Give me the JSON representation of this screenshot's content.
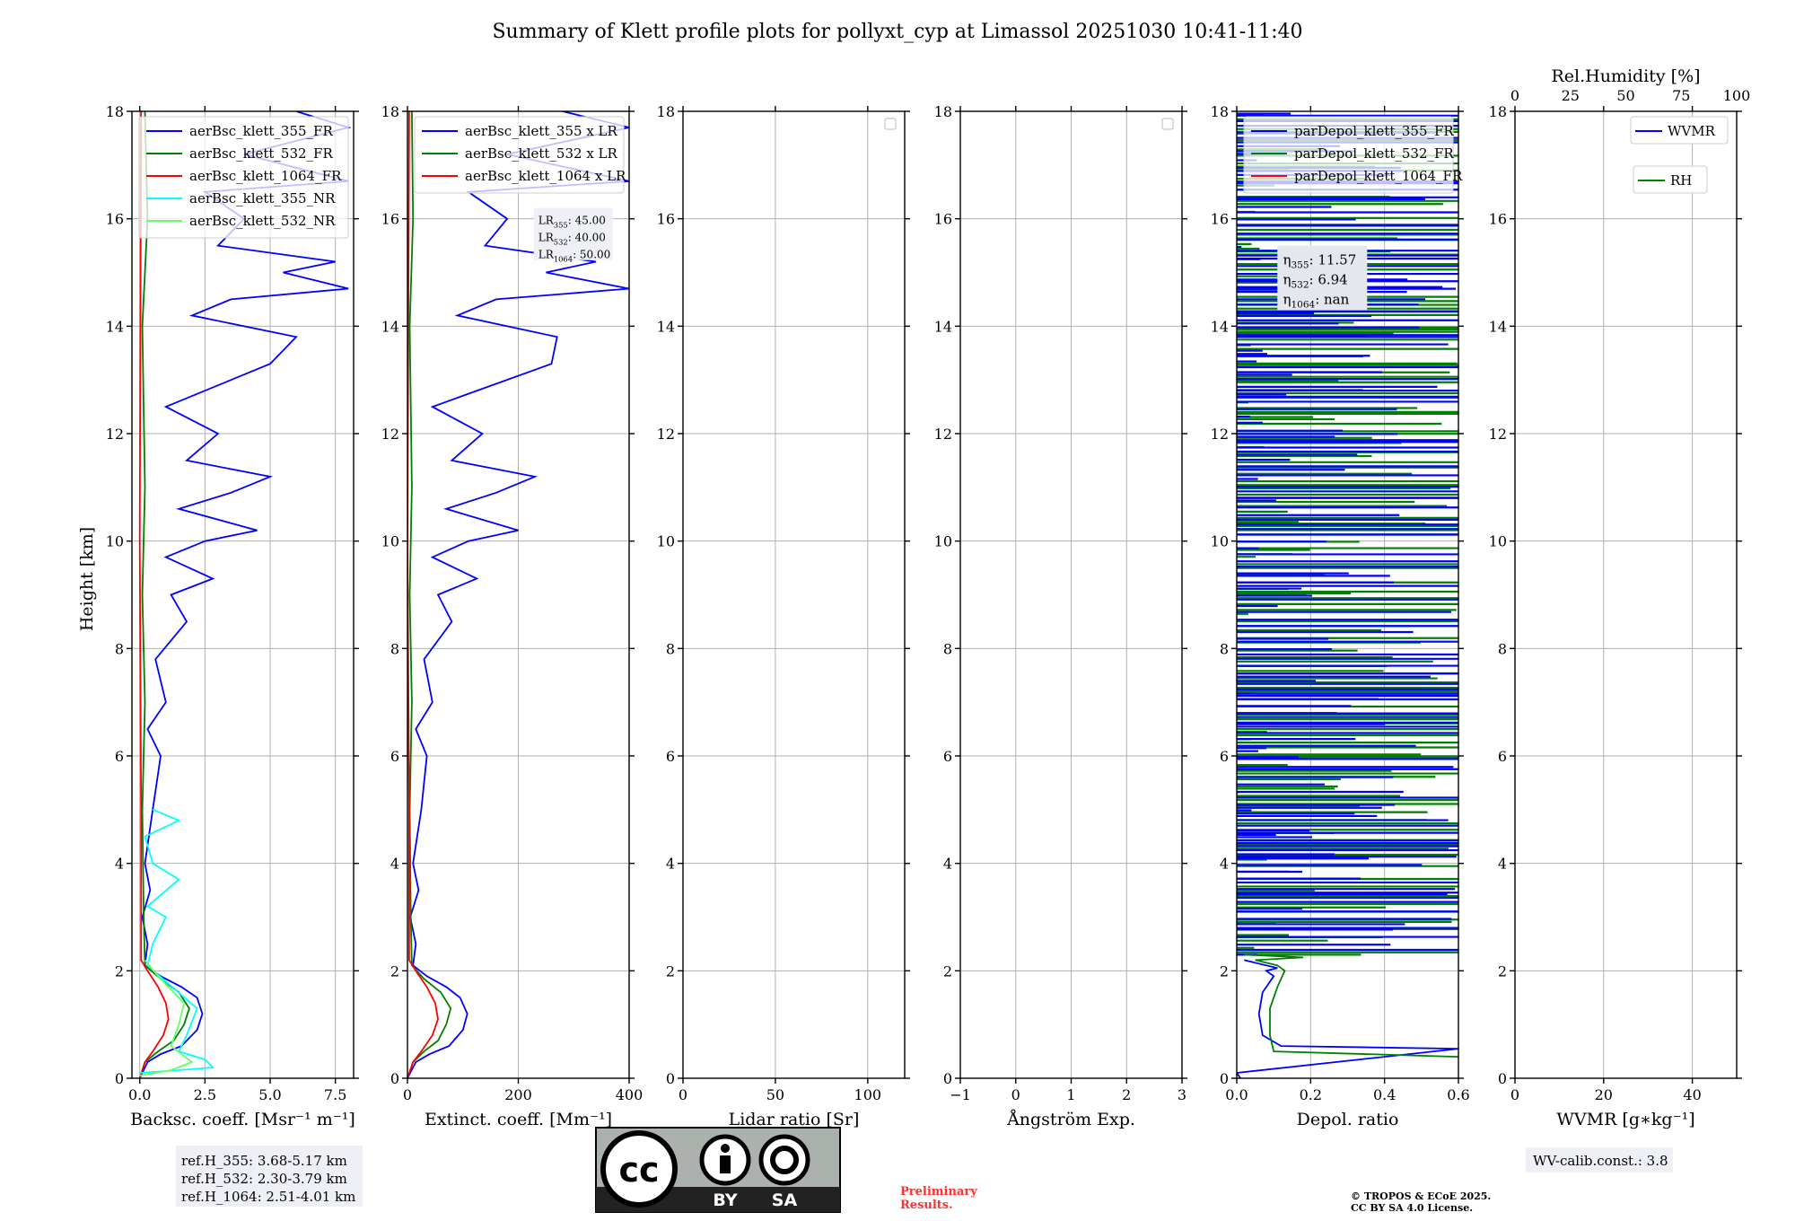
{
  "title": "Summary of Klett profile plots for pollyxt_cyp at Limassol 20251030 10:41-11:40",
  "ylabel": "Height [km]",
  "colors": {
    "c355": "#0000ff",
    "c532": "#008000",
    "c1064": "#ff0000",
    "cNR355": "#00ffff",
    "cNR532": "#66ff66",
    "grid": "#b0b0b0"
  },
  "chart_data": [
    {
      "type": "line",
      "xlabel": "Backsc. coeff. [Msr⁻¹ m⁻¹]",
      "xlim": [
        -0.3,
        8.2
      ],
      "ylim": [
        0,
        18
      ],
      "xticks": [
        0,
        2.5,
        5,
        7.5
      ],
      "xticklabels": [
        "0.0",
        "2.5",
        "5.0",
        "7.5"
      ],
      "yticks": [
        0,
        2,
        4,
        6,
        8,
        10,
        12,
        14,
        16,
        18
      ],
      "legend": [
        "aerBsc_klett_355_FR",
        "aerBsc_klett_532_FR",
        "aerBsc_klett_1064_FR",
        "aerBsc_klett_355_NR",
        "aerBsc_klett_532_NR"
      ],
      "series": [
        {
          "name": "aerBsc_klett_355_FR",
          "color": "#0000ff",
          "points": [
            [
              0,
              0
            ],
            [
              0.3,
              0.3
            ],
            [
              0.8,
              0.45
            ],
            [
              1.6,
              0.6
            ],
            [
              2.2,
              0.9
            ],
            [
              2.4,
              1.2
            ],
            [
              2.2,
              1.5
            ],
            [
              1.6,
              1.7
            ],
            [
              0.8,
              1.9
            ],
            [
              0.2,
              2.1
            ],
            [
              0.3,
              2.5
            ],
            [
              0.1,
              3.0
            ],
            [
              0.4,
              3.5
            ],
            [
              0.2,
              4.0
            ],
            [
              0.5,
              5.0
            ],
            [
              0.8,
              6.0
            ],
            [
              0.3,
              6.5
            ],
            [
              1.0,
              7.0
            ],
            [
              0.6,
              7.8
            ],
            [
              1.8,
              8.5
            ],
            [
              1.2,
              9.0
            ],
            [
              2.8,
              9.3
            ],
            [
              1.0,
              9.7
            ],
            [
              2.5,
              10.0
            ],
            [
              4.5,
              10.2
            ],
            [
              1.5,
              10.6
            ],
            [
              3.5,
              10.9
            ],
            [
              5.0,
              11.2
            ],
            [
              1.8,
              11.5
            ],
            [
              3.0,
              12.0
            ],
            [
              1.0,
              12.5
            ],
            [
              5.0,
              13.3
            ],
            [
              6.0,
              13.8
            ],
            [
              2.0,
              14.2
            ],
            [
              3.5,
              14.5
            ],
            [
              8.0,
              14.7
            ],
            [
              5.5,
              15.0
            ],
            [
              7.5,
              15.2
            ],
            [
              3.0,
              15.5
            ],
            [
              4.0,
              16.0
            ],
            [
              2.5,
              16.5
            ],
            [
              8.0,
              16.7
            ],
            [
              4.0,
              17.2
            ],
            [
              8.0,
              17.7
            ],
            [
              6.0,
              18.0
            ]
          ]
        },
        {
          "name": "aerBsc_klett_532_FR",
          "color": "#008000",
          "points": [
            [
              0,
              0
            ],
            [
              0.2,
              0.3
            ],
            [
              0.7,
              0.5
            ],
            [
              1.3,
              0.7
            ],
            [
              1.7,
              1.0
            ],
            [
              1.9,
              1.3
            ],
            [
              1.5,
              1.6
            ],
            [
              0.8,
              1.85
            ],
            [
              0.2,
              2.1
            ],
            [
              0.15,
              3.0
            ],
            [
              0.1,
              5.0
            ],
            [
              0.2,
              7.0
            ],
            [
              0.1,
              9.0
            ],
            [
              0.2,
              11.0
            ],
            [
              0.1,
              14.0
            ],
            [
              0.3,
              16.0
            ],
            [
              0.2,
              18.0
            ]
          ]
        },
        {
          "name": "aerBsc_klett_1064_FR",
          "color": "#ff0000",
          "points": [
            [
              0,
              0
            ],
            [
              0.2,
              0.3
            ],
            [
              0.5,
              0.5
            ],
            [
              0.9,
              0.8
            ],
            [
              1.1,
              1.1
            ],
            [
              1.0,
              1.4
            ],
            [
              0.7,
              1.7
            ],
            [
              0.3,
              2.0
            ],
            [
              0.05,
              2.2
            ],
            [
              0.05,
              5.0
            ],
            [
              0.0,
              10.0
            ],
            [
              0.05,
              18.0
            ]
          ]
        },
        {
          "name": "aerBsc_klett_355_NR",
          "color": "#00ffff",
          "points": [
            [
              0,
              0.1
            ],
            [
              1.5,
              0.15
            ],
            [
              2.8,
              0.2
            ],
            [
              2.5,
              0.35
            ],
            [
              1.5,
              0.5
            ],
            [
              1.8,
              0.8
            ],
            [
              2.2,
              1.3
            ],
            [
              1.0,
              1.8
            ],
            [
              0.3,
              2.1
            ],
            [
              0.5,
              2.5
            ],
            [
              1.0,
              3.0
            ],
            [
              0.3,
              3.2
            ],
            [
              1.5,
              3.7
            ],
            [
              0.5,
              4.0
            ],
            [
              0.2,
              4.5
            ],
            [
              1.5,
              4.8
            ],
            [
              0.5,
              5.0
            ]
          ]
        },
        {
          "name": "aerBsc_klett_532_NR",
          "color": "#66ff66",
          "points": [
            [
              0,
              0.05
            ],
            [
              1.2,
              0.15
            ],
            [
              2.0,
              0.3
            ],
            [
              1.2,
              0.6
            ],
            [
              1.5,
              1.0
            ],
            [
              1.7,
              1.4
            ],
            [
              0.7,
              1.9
            ],
            [
              0.2,
              2.2
            ]
          ]
        }
      ]
    },
    {
      "type": "line",
      "xlabel": "Extinct. coeff. [Mm⁻¹]",
      "xlim": [
        0,
        400
      ],
      "ylim": [
        0,
        18
      ],
      "xticks": [
        0,
        200,
        400
      ],
      "xticklabels": [
        "0",
        "200",
        "400"
      ],
      "yticks": [
        0,
        2,
        4,
        6,
        8,
        10,
        12,
        14,
        16,
        18
      ],
      "legend": [
        "aerBsc_klett_355 x LR",
        "aerBsc_klett_532 x LR",
        "aerBsc_klett_1064 x LR"
      ],
      "annotation": [
        "LR355: 45.00",
        "LR532: 40.00",
        "LR1064: 50.00"
      ],
      "series": [
        {
          "name": "355",
          "color": "#0000ff",
          "points": [
            [
              0,
              0
            ],
            [
              15,
              0.3
            ],
            [
              40,
              0.45
            ],
            [
              75,
              0.6
            ],
            [
              100,
              0.9
            ],
            [
              108,
              1.2
            ],
            [
              95,
              1.5
            ],
            [
              70,
              1.7
            ],
            [
              35,
              1.9
            ],
            [
              10,
              2.1
            ],
            [
              15,
              2.5
            ],
            [
              5,
              3.0
            ],
            [
              20,
              3.5
            ],
            [
              10,
              4.0
            ],
            [
              25,
              5.0
            ],
            [
              35,
              6.0
            ],
            [
              15,
              6.5
            ],
            [
              45,
              7.0
            ],
            [
              30,
              7.8
            ],
            [
              80,
              8.5
            ],
            [
              55,
              9.0
            ],
            [
              125,
              9.3
            ],
            [
              45,
              9.7
            ],
            [
              110,
              10.0
            ],
            [
              200,
              10.2
            ],
            [
              70,
              10.6
            ],
            [
              160,
              10.9
            ],
            [
              230,
              11.2
            ],
            [
              80,
              11.5
            ],
            [
              135,
              12.0
            ],
            [
              45,
              12.5
            ],
            [
              260,
              13.3
            ],
            [
              270,
              13.8
            ],
            [
              90,
              14.2
            ],
            [
              160,
              14.5
            ],
            [
              400,
              14.7
            ],
            [
              250,
              15.0
            ],
            [
              340,
              15.2
            ],
            [
              140,
              15.5
            ],
            [
              180,
              16.0
            ],
            [
              110,
              16.5
            ],
            [
              400,
              16.7
            ],
            [
              180,
              17.2
            ],
            [
              400,
              17.7
            ],
            [
              280,
              18.0
            ]
          ]
        },
        {
          "name": "532",
          "color": "#008000",
          "points": [
            [
              0,
              0
            ],
            [
              10,
              0.3
            ],
            [
              30,
              0.5
            ],
            [
              55,
              0.7
            ],
            [
              70,
              1.0
            ],
            [
              78,
              1.3
            ],
            [
              60,
              1.6
            ],
            [
              30,
              1.85
            ],
            [
              8,
              2.1
            ],
            [
              6,
              3.0
            ],
            [
              4,
              5.0
            ],
            [
              8,
              7.0
            ],
            [
              4,
              9.0
            ],
            [
              8,
              11.0
            ],
            [
              4,
              14.0
            ],
            [
              10,
              16.0
            ],
            [
              8,
              18.0
            ]
          ]
        },
        {
          "name": "1064",
          "color": "#ff0000",
          "points": [
            [
              0,
              0
            ],
            [
              10,
              0.3
            ],
            [
              25,
              0.5
            ],
            [
              45,
              0.8
            ],
            [
              55,
              1.1
            ],
            [
              50,
              1.4
            ],
            [
              35,
              1.7
            ],
            [
              15,
              2.0
            ],
            [
              3,
              2.2
            ],
            [
              3,
              5.0
            ],
            [
              0,
              10.0
            ],
            [
              3,
              18.0
            ]
          ]
        }
      ]
    },
    {
      "type": "line",
      "xlabel": "Lidar ratio [Sr]",
      "xlim": [
        0,
        120
      ],
      "ylim": [
        0,
        18
      ],
      "xticks": [
        0,
        50,
        100
      ],
      "xticklabels": [
        "0",
        "50",
        "100"
      ],
      "yticks": [
        0,
        2,
        4,
        6,
        8,
        10,
        12,
        14,
        16,
        18
      ],
      "series": []
    },
    {
      "type": "line",
      "xlabel": "Ångström Exp.",
      "xlim": [
        -1,
        3
      ],
      "ylim": [
        0,
        18
      ],
      "xticks": [
        -1,
        0,
        1,
        2,
        3
      ],
      "xticklabels": [
        "−1",
        "0",
        "1",
        "2",
        "3"
      ],
      "yticks": [
        0,
        2,
        4,
        6,
        8,
        10,
        12,
        14,
        16,
        18
      ],
      "series": []
    },
    {
      "type": "line",
      "xlabel": "Depol. ratio",
      "xlim": [
        0,
        0.6
      ],
      "ylim": [
        0,
        18
      ],
      "xticks": [
        0,
        0.2,
        0.4,
        0.6
      ],
      "xticklabels": [
        "0.0",
        "0.2",
        "0.4",
        "0.6"
      ],
      "yticks": [
        0,
        2,
        4,
        6,
        8,
        10,
        12,
        14,
        16,
        18
      ],
      "legend": [
        "parDepol_klett_355_FR",
        "parDepol_klett_532_FR",
        "parDepol_klett_1064_FR"
      ],
      "annotation": [
        "η355: 11.57",
        "η532: 6.94",
        "η1064: nan"
      ],
      "series": [
        {
          "name": "355",
          "color": "#0000ff",
          "points": [
            [
              0.01,
              0
            ],
            [
              0.0,
              0.1
            ],
            [
              0.6,
              0.55
            ],
            [
              0.12,
              0.6
            ],
            [
              0.07,
              0.8
            ],
            [
              0.06,
              1.2
            ],
            [
              0.07,
              1.6
            ],
            [
              0.1,
              1.9
            ],
            [
              0.08,
              2.0
            ],
            [
              0.11,
              2.05
            ],
            [
              0.02,
              2.2
            ]
          ]
        },
        {
          "name": "532",
          "color": "#008000",
          "points": [
            [
              0.6,
              0.4
            ],
            [
              0.1,
              0.5
            ],
            [
              0.09,
              0.8
            ],
            [
              0.09,
              1.3
            ],
            [
              0.11,
              1.7
            ],
            [
              0.13,
              2.0
            ],
            [
              0.11,
              2.1
            ],
            [
              0.05,
              2.2
            ],
            [
              0.18,
              2.25
            ],
            [
              0.02,
              2.3
            ]
          ]
        }
      ],
      "noise_from_km": 2.3
    },
    {
      "type": "line",
      "xlabel": "WVMR [g∗kg⁻¹]",
      "xlim": [
        0,
        50
      ],
      "ylim": [
        0,
        18
      ],
      "xticks": [
        0,
        20,
        40
      ],
      "xticklabels": [
        "0",
        "20",
        "40"
      ],
      "yticks": [
        0,
        2,
        4,
        6,
        8,
        10,
        12,
        14,
        16,
        18
      ],
      "top_axis": {
        "label": "Rel.Humidity [%]",
        "ticks": [
          0,
          25,
          50,
          75,
          100
        ]
      },
      "legend": [
        "WVMR",
        "RH"
      ],
      "series": []
    }
  ],
  "refs": [
    "ref.H_355: 3.68-5.17 km",
    "ref.H_532: 2.30-3.79 km",
    "ref.H_1064: 2.51-4.01 km"
  ],
  "wv_calib": "WV-calib.const.: 3.8",
  "preliminary": [
    "Preliminary",
    "Results."
  ],
  "copyright": [
    "© TROPOS & ECoE 2025.",
    "CC BY SA 4.0 License."
  ],
  "license_badge": {
    "by": "BY",
    "sa": "SA",
    "cc": "cc"
  }
}
